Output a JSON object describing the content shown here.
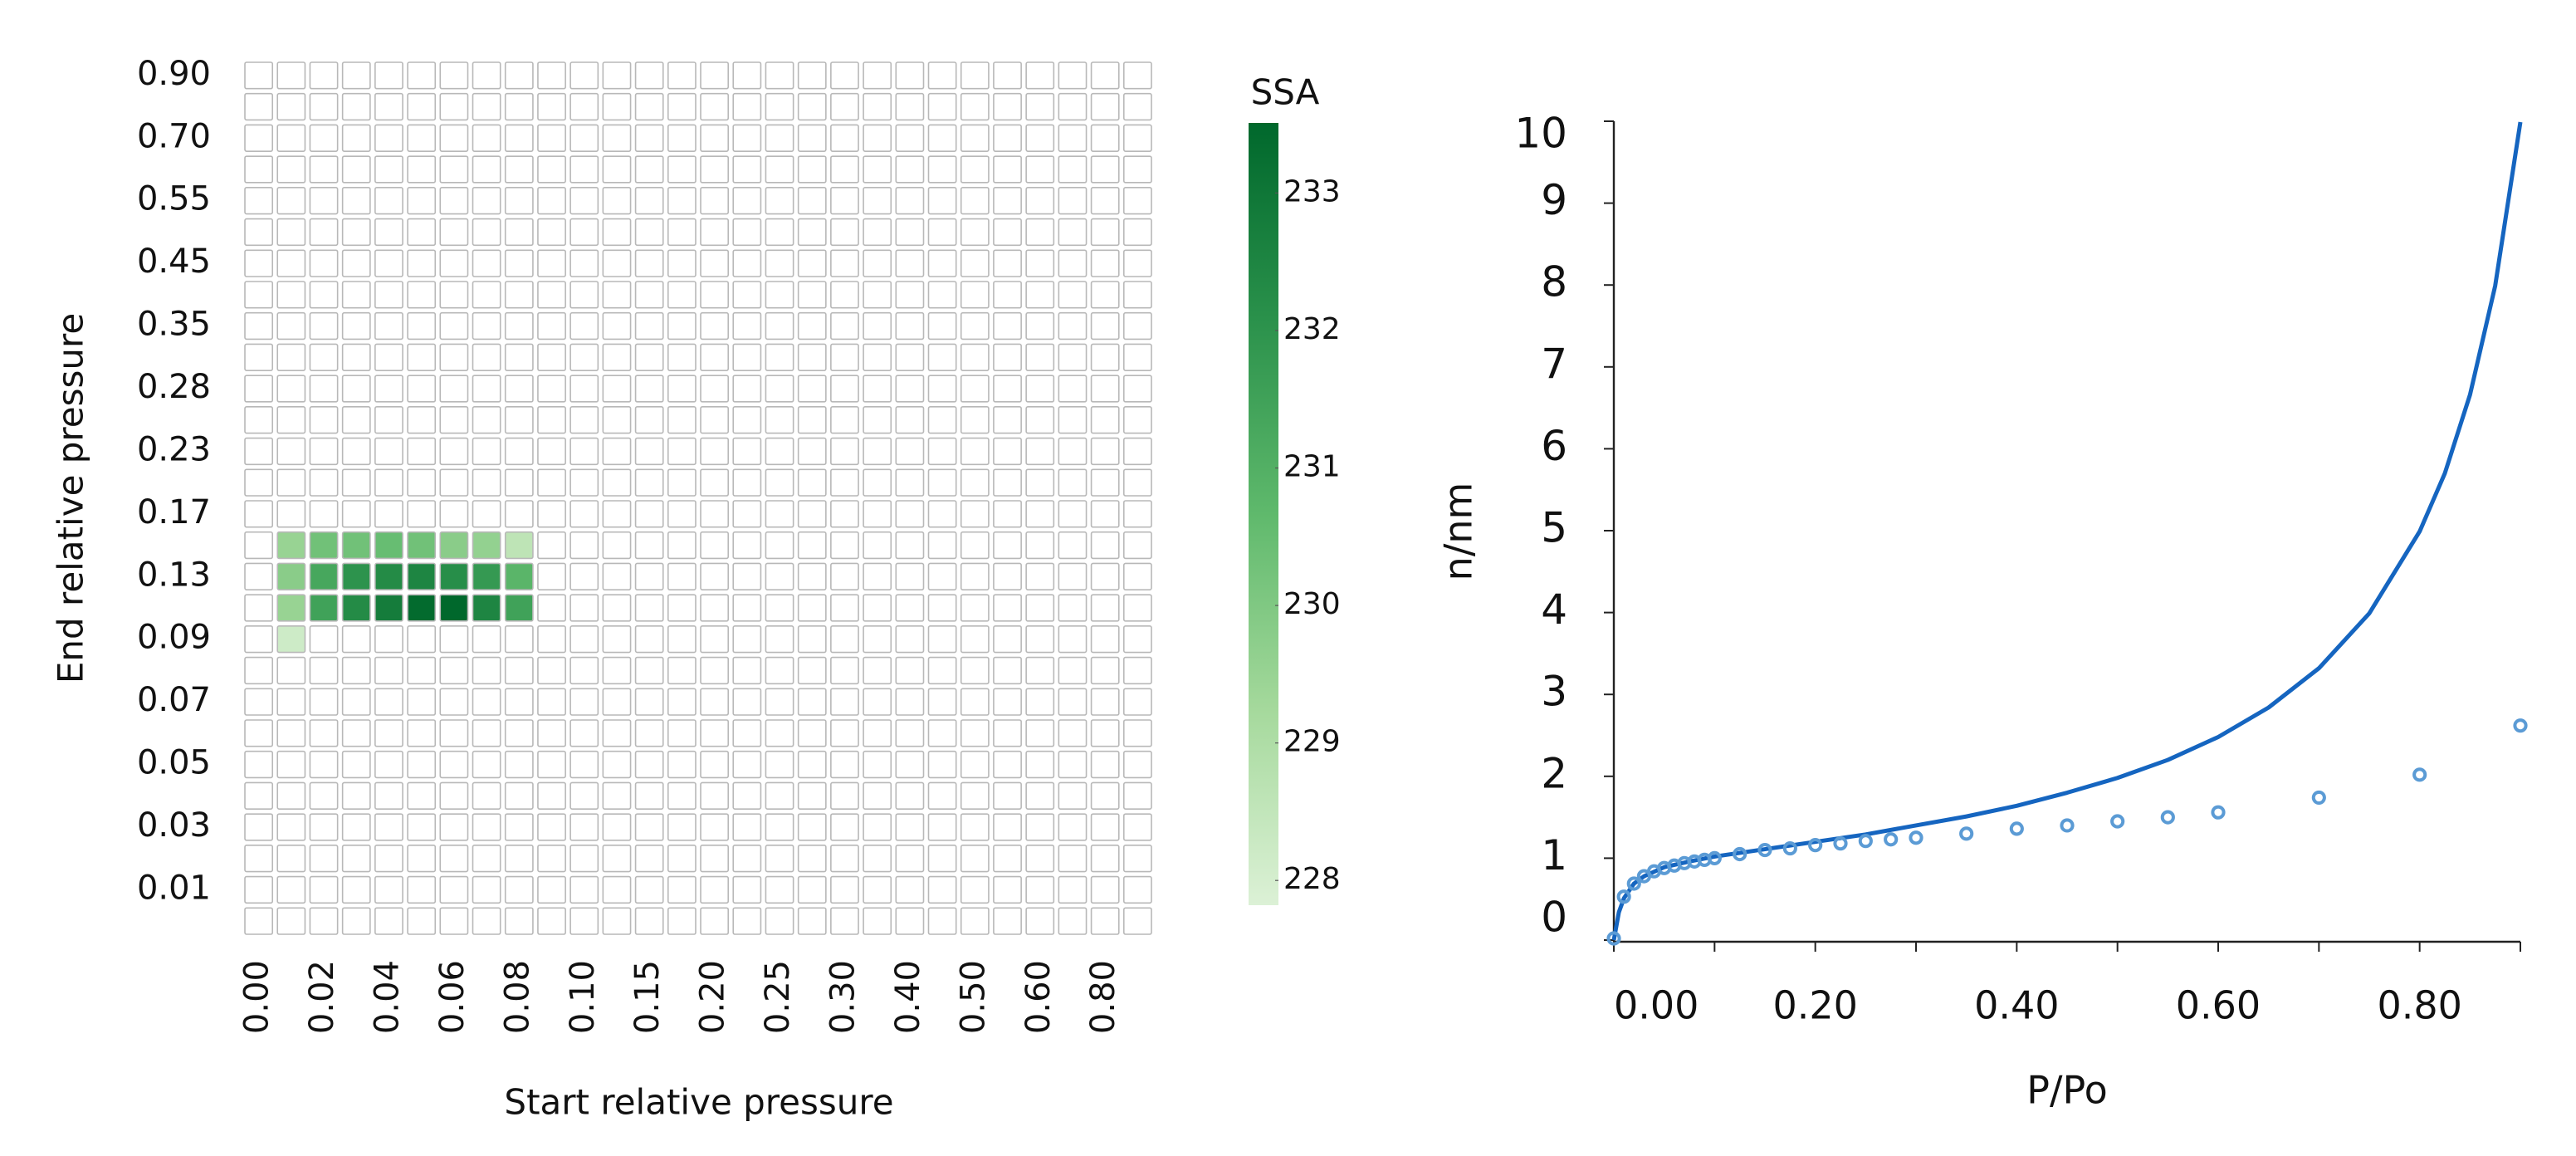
{
  "chart_data": [
    {
      "type": "heatmap",
      "x_label": "Start relative pressure",
      "y_label": "End relative pressure",
      "x_categories": [
        "0.00",
        null,
        "0.02",
        null,
        "0.04",
        null,
        "0.06",
        null,
        "0.08",
        null,
        "0.10",
        null,
        "0.15",
        null,
        "0.20",
        null,
        "0.25",
        null,
        "0.30",
        null,
        "0.40",
        null,
        "0.50",
        null,
        "0.60",
        null,
        "0.80",
        null
      ],
      "y_categories": [
        "0.90",
        null,
        "0.70",
        null,
        "0.55",
        null,
        "0.45",
        null,
        "0.35",
        null,
        "0.28",
        null,
        "0.23",
        null,
        "0.17",
        null,
        "0.13",
        null,
        "0.09",
        null,
        "0.07",
        null,
        "0.05",
        null,
        "0.03",
        null,
        "0.01",
        null
      ],
      "values": [
        [
          null,
          null,
          null,
          null,
          null,
          null,
          null,
          null,
          null,
          null,
          null,
          null,
          null,
          null,
          null,
          null,
          null,
          null,
          null,
          null,
          null,
          null,
          null,
          null,
          null,
          null,
          null,
          null
        ],
        [
          null,
          null,
          null,
          null,
          null,
          null,
          null,
          null,
          null,
          null,
          null,
          null,
          null,
          null,
          null,
          null,
          null,
          null,
          null,
          null,
          null,
          null,
          null,
          null,
          null,
          null,
          null,
          null
        ],
        [
          null,
          null,
          null,
          null,
          null,
          null,
          null,
          null,
          null,
          null,
          null,
          null,
          null,
          null,
          null,
          null,
          null,
          null,
          null,
          null,
          null,
          null,
          null,
          null,
          null,
          null,
          null,
          null
        ],
        [
          null,
          null,
          null,
          null,
          null,
          null,
          null,
          null,
          null,
          null,
          null,
          null,
          null,
          null,
          null,
          null,
          null,
          null,
          null,
          null,
          null,
          null,
          null,
          null,
          null,
          null,
          null,
          null
        ],
        [
          null,
          null,
          null,
          null,
          null,
          null,
          null,
          null,
          null,
          null,
          null,
          null,
          null,
          null,
          null,
          null,
          null,
          null,
          null,
          null,
          null,
          null,
          null,
          null,
          null,
          null,
          null,
          null
        ],
        [
          null,
          null,
          null,
          null,
          null,
          null,
          null,
          null,
          null,
          null,
          null,
          null,
          null,
          null,
          null,
          null,
          null,
          null,
          null,
          null,
          null,
          null,
          null,
          null,
          null,
          null,
          null,
          null
        ],
        [
          null,
          null,
          null,
          null,
          null,
          null,
          null,
          null,
          null,
          null,
          null,
          null,
          null,
          null,
          null,
          null,
          null,
          null,
          null,
          null,
          null,
          null,
          null,
          null,
          null,
          null,
          null,
          null
        ],
        [
          null,
          null,
          null,
          null,
          null,
          null,
          null,
          null,
          null,
          null,
          null,
          null,
          null,
          null,
          null,
          null,
          null,
          null,
          null,
          null,
          null,
          null,
          null,
          null,
          null,
          null,
          null,
          null
        ],
        [
          null,
          null,
          null,
          null,
          null,
          null,
          null,
          null,
          null,
          null,
          null,
          null,
          null,
          null,
          null,
          null,
          null,
          null,
          null,
          null,
          null,
          null,
          null,
          null,
          null,
          null,
          null,
          null
        ],
        [
          null,
          null,
          null,
          null,
          null,
          null,
          null,
          null,
          null,
          null,
          null,
          null,
          null,
          null,
          null,
          null,
          null,
          null,
          null,
          null,
          null,
          null,
          null,
          null,
          null,
          null,
          null,
          null
        ],
        [
          null,
          null,
          null,
          null,
          null,
          null,
          null,
          null,
          null,
          null,
          null,
          null,
          null,
          null,
          null,
          null,
          null,
          null,
          null,
          null,
          null,
          null,
          null,
          null,
          null,
          null,
          null,
          null
        ],
        [
          null,
          null,
          null,
          null,
          null,
          null,
          null,
          null,
          null,
          null,
          null,
          null,
          null,
          null,
          null,
          null,
          null,
          null,
          null,
          null,
          null,
          null,
          null,
          null,
          null,
          null,
          null,
          null
        ],
        [
          null,
          null,
          null,
          null,
          null,
          null,
          null,
          null,
          null,
          null,
          null,
          null,
          null,
          null,
          null,
          null,
          null,
          null,
          null,
          null,
          null,
          null,
          null,
          null,
          null,
          null,
          null,
          null
        ],
        [
          null,
          null,
          null,
          null,
          null,
          null,
          null,
          null,
          null,
          null,
          null,
          null,
          null,
          null,
          null,
          null,
          null,
          null,
          null,
          null,
          null,
          null,
          null,
          null,
          null,
          null,
          null,
          null
        ],
        [
          null,
          null,
          null,
          null,
          null,
          null,
          null,
          null,
          null,
          null,
          null,
          null,
          null,
          null,
          null,
          null,
          null,
          null,
          null,
          null,
          null,
          null,
          null,
          null,
          null,
          null,
          null,
          null
        ],
        [
          null,
          229.5,
          230.3,
          230.3,
          230.5,
          230.3,
          229.8,
          229.6,
          228.6,
          null,
          null,
          null,
          null,
          null,
          null,
          null,
          null,
          null,
          null,
          null,
          null,
          null,
          null,
          null,
          null,
          null,
          null,
          null
        ],
        [
          null,
          229.8,
          231.3,
          232.0,
          232.3,
          232.5,
          232.2,
          231.8,
          230.8,
          null,
          null,
          null,
          null,
          null,
          null,
          null,
          null,
          null,
          null,
          null,
          null,
          null,
          null,
          null,
          null,
          null,
          null,
          null
        ],
        [
          null,
          229.5,
          231.5,
          232.3,
          232.8,
          233.4,
          233.5,
          232.5,
          231.5,
          null,
          null,
          null,
          null,
          null,
          null,
          null,
          null,
          null,
          null,
          null,
          null,
          null,
          null,
          null,
          null,
          null,
          null,
          null
        ],
        [
          null,
          228.2,
          null,
          null,
          null,
          null,
          null,
          null,
          null,
          null,
          null,
          null,
          null,
          null,
          null,
          null,
          null,
          null,
          null,
          null,
          null,
          null,
          null,
          null,
          null,
          null,
          null,
          null
        ],
        [
          null,
          null,
          null,
          null,
          null,
          null,
          null,
          null,
          null,
          null,
          null,
          null,
          null,
          null,
          null,
          null,
          null,
          null,
          null,
          null,
          null,
          null,
          null,
          null,
          null,
          null,
          null,
          null
        ],
        [
          null,
          null,
          null,
          null,
          null,
          null,
          null,
          null,
          null,
          null,
          null,
          null,
          null,
          null,
          null,
          null,
          null,
          null,
          null,
          null,
          null,
          null,
          null,
          null,
          null,
          null,
          null,
          null
        ],
        [
          null,
          null,
          null,
          null,
          null,
          null,
          null,
          null,
          null,
          null,
          null,
          null,
          null,
          null,
          null,
          null,
          null,
          null,
          null,
          null,
          null,
          null,
          null,
          null,
          null,
          null,
          null,
          null
        ],
        [
          null,
          null,
          null,
          null,
          null,
          null,
          null,
          null,
          null,
          null,
          null,
          null,
          null,
          null,
          null,
          null,
          null,
          null,
          null,
          null,
          null,
          null,
          null,
          null,
          null,
          null,
          null,
          null
        ],
        [
          null,
          null,
          null,
          null,
          null,
          null,
          null,
          null,
          null,
          null,
          null,
          null,
          null,
          null,
          null,
          null,
          null,
          null,
          null,
          null,
          null,
          null,
          null,
          null,
          null,
          null,
          null,
          null
        ],
        [
          null,
          null,
          null,
          null,
          null,
          null,
          null,
          null,
          null,
          null,
          null,
          null,
          null,
          null,
          null,
          null,
          null,
          null,
          null,
          null,
          null,
          null,
          null,
          null,
          null,
          null,
          null,
          null
        ],
        [
          null,
          null,
          null,
          null,
          null,
          null,
          null,
          null,
          null,
          null,
          null,
          null,
          null,
          null,
          null,
          null,
          null,
          null,
          null,
          null,
          null,
          null,
          null,
          null,
          null,
          null,
          null,
          null
        ],
        [
          null,
          null,
          null,
          null,
          null,
          null,
          null,
          null,
          null,
          null,
          null,
          null,
          null,
          null,
          null,
          null,
          null,
          null,
          null,
          null,
          null,
          null,
          null,
          null,
          null,
          null,
          null,
          null
        ],
        [
          null,
          null,
          null,
          null,
          null,
          null,
          null,
          null,
          null,
          null,
          null,
          null,
          null,
          null,
          null,
          null,
          null,
          null,
          null,
          null,
          null,
          null,
          null,
          null,
          null,
          null,
          null,
          null
        ]
      ],
      "colorbar_label": "SSA",
      "clim": [
        227.82,
        233.51
      ],
      "cticks": [
        228,
        229,
        230,
        231,
        232,
        233
      ],
      "colormap": [
        "#dcf1d6",
        "#a5d99c",
        "#5fb96c",
        "#2a914b",
        "#00682c"
      ],
      "empty_color": "#ffffff",
      "cell_border": "#b8b8b8"
    },
    {
      "type": "line",
      "x_label": "P/Po",
      "y_label": "n/nm",
      "xlim": [
        0,
        0.9
      ],
      "ylim": [
        0,
        10
      ],
      "xticks": [
        {
          "value": 0,
          "label": "0.00"
        },
        {
          "value": 0.2,
          "label": "0.20"
        },
        {
          "value": 0.4,
          "label": "0.40"
        },
        {
          "value": 0.6,
          "label": "0.60"
        },
        {
          "value": 0.8,
          "label": "0.80"
        }
      ],
      "xminor_ticks": [
        0.1,
        0.3,
        0.5,
        0.7,
        0.9
      ],
      "yticks": [
        0,
        1,
        2,
        3,
        4,
        5,
        6,
        7,
        8,
        9,
        10
      ],
      "series": [
        {
          "type": "line",
          "color": "#1565c0",
          "x": [
            0,
            0.005,
            0.01,
            0.02,
            0.03,
            0.05,
            0.075,
            0.1,
            0.15,
            0.2,
            0.25,
            0.3,
            0.35,
            0.4,
            0.45,
            0.5,
            0.55,
            0.6,
            0.65,
            0.7,
            0.75,
            0.8,
            0.825,
            0.85,
            0.875,
            0.9
          ],
          "values": [
            0,
            0.34,
            0.51,
            0.69,
            0.78,
            0.89,
            0.96,
            1.02,
            1.11,
            1.2,
            1.29,
            1.4,
            1.51,
            1.64,
            1.8,
            1.98,
            2.2,
            2.48,
            2.84,
            3.32,
            3.99,
            4.99,
            5.7,
            6.66,
            7.99,
            9.99
          ]
        },
        {
          "type": "scatter",
          "color": "#5b9bd5",
          "x": [
            0,
            0.01,
            0.02,
            0.03,
            0.04,
            0.05,
            0.06,
            0.07,
            0.08,
            0.09,
            0.1,
            0.125,
            0.15,
            0.175,
            0.2,
            0.225,
            0.25,
            0.275,
            0.3,
            0.35,
            0.4,
            0.45,
            0.5,
            0.55,
            0.6,
            0.7,
            0.8,
            0.9
          ],
          "values": [
            0.02,
            0.53,
            0.69,
            0.78,
            0.84,
            0.88,
            0.91,
            0.94,
            0.96,
            0.98,
            1.0,
            1.05,
            1.1,
            1.12,
            1.16,
            1.18,
            1.21,
            1.23,
            1.25,
            1.3,
            1.36,
            1.4,
            1.45,
            1.5,
            1.56,
            1.74,
            2.02,
            2.62
          ]
        }
      ]
    }
  ]
}
